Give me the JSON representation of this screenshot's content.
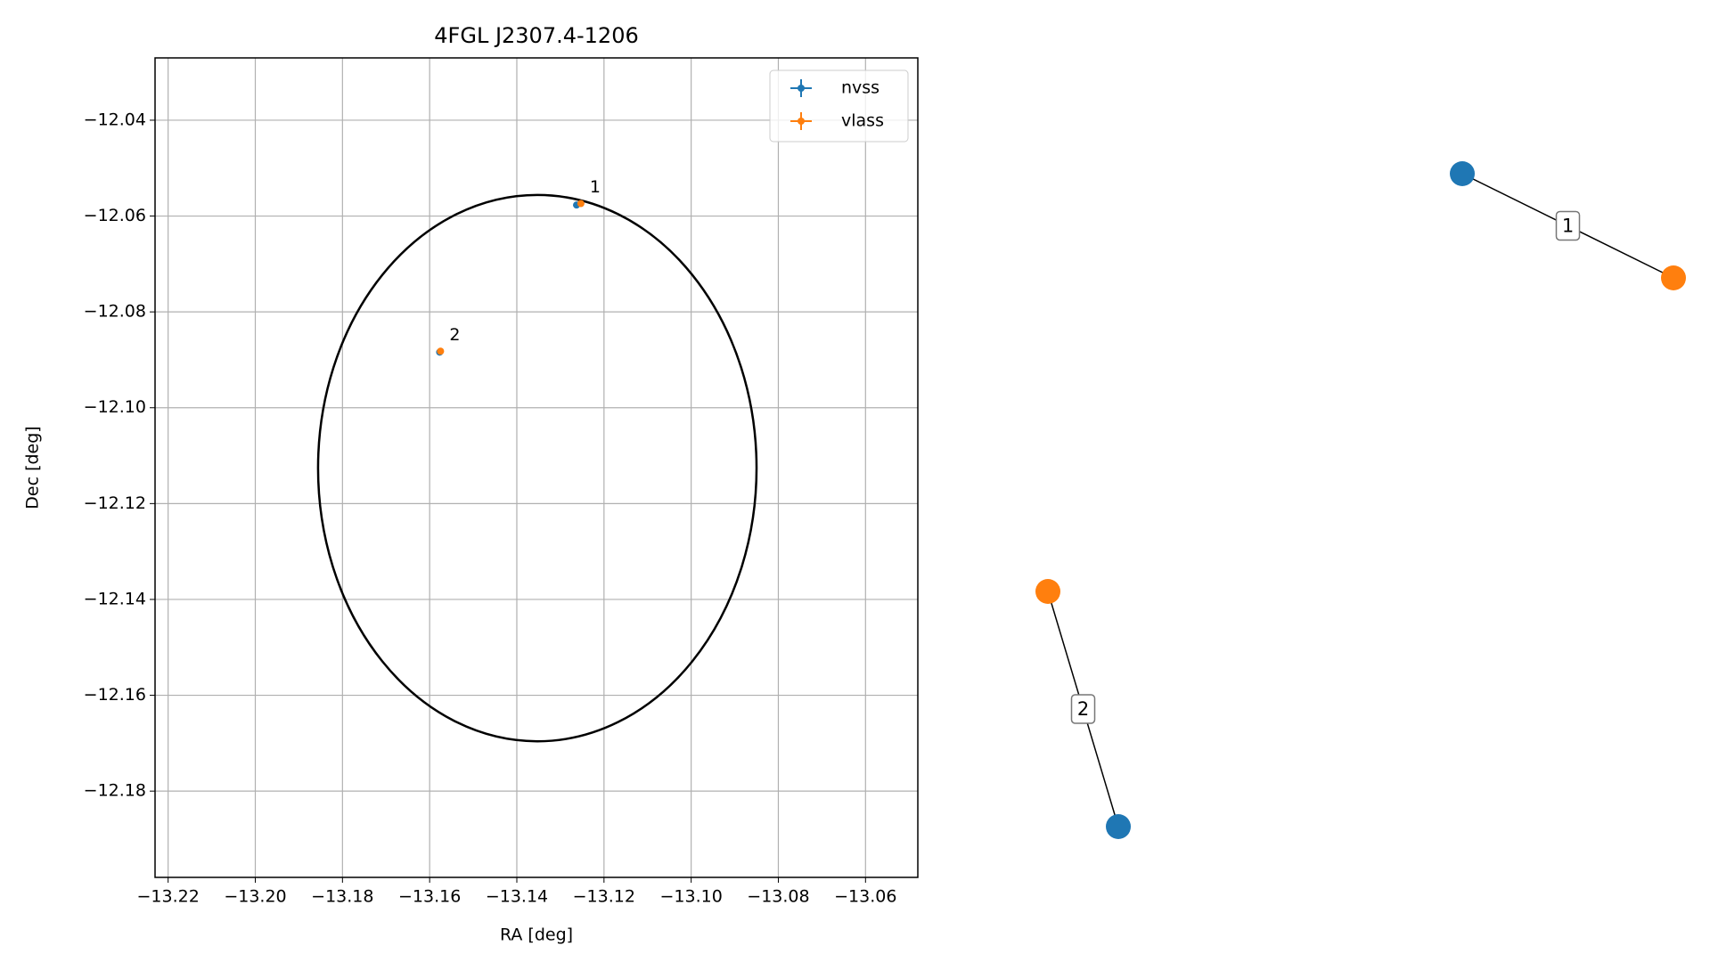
{
  "chart_data": [
    {
      "type": "scatter",
      "title": "4FGL J2307.4-1206",
      "x_label": "RA [deg]",
      "y_label": "Dec [deg]",
      "xlim": [
        -13.223,
        -13.048
      ],
      "ylim": [
        -12.198,
        -12.027
      ],
      "xticks": [
        {
          "value": -13.22,
          "label": "−13.22"
        },
        {
          "value": -13.2,
          "label": "−13.20"
        },
        {
          "value": -13.18,
          "label": "−13.18"
        },
        {
          "value": -13.16,
          "label": "−13.16"
        },
        {
          "value": -13.14,
          "label": "−13.14"
        },
        {
          "value": -13.12,
          "label": "−13.12"
        },
        {
          "value": -13.1,
          "label": "−13.10"
        },
        {
          "value": -13.08,
          "label": "−13.08"
        },
        {
          "value": -13.06,
          "label": "−13.06"
        }
      ],
      "yticks": [
        {
          "value": -12.04,
          "label": "−12.04"
        },
        {
          "value": -12.06,
          "label": "−12.06"
        },
        {
          "value": -12.08,
          "label": "−12.08"
        },
        {
          "value": -12.1,
          "label": "−12.10"
        },
        {
          "value": -12.12,
          "label": "−12.12"
        },
        {
          "value": -12.14,
          "label": "−12.14"
        },
        {
          "value": -12.16,
          "label": "−12.16"
        },
        {
          "value": -12.18,
          "label": "−12.18"
        }
      ],
      "grid": true,
      "legend": "upper right",
      "series": [
        {
          "name": "nvss",
          "color": "#1f77b4",
          "x": [
            -13.1263,
            -13.1577
          ],
          "values": [
            -12.0577,
            -12.0884
          ]
        },
        {
          "name": "vlass",
          "color": "#ff7f0e",
          "x": [
            -13.1253,
            -13.1575
          ],
          "values": [
            -12.0574,
            -12.0882
          ]
        }
      ],
      "labels": [
        "1",
        "2"
      ],
      "ellipse": {
        "center_x": -13.1353,
        "center_y": -12.1126,
        "half_width": 0.0503,
        "half_height": 0.057,
        "color": "#000000"
      }
    },
    {
      "type": "network",
      "edges": [
        {
          "label": "1",
          "source_color": "#1f77b4",
          "target_color": "#ff7f0e"
        },
        {
          "label": "2",
          "source_color": "#ff7f0e",
          "target_color": "#1f77b4"
        }
      ]
    }
  ]
}
